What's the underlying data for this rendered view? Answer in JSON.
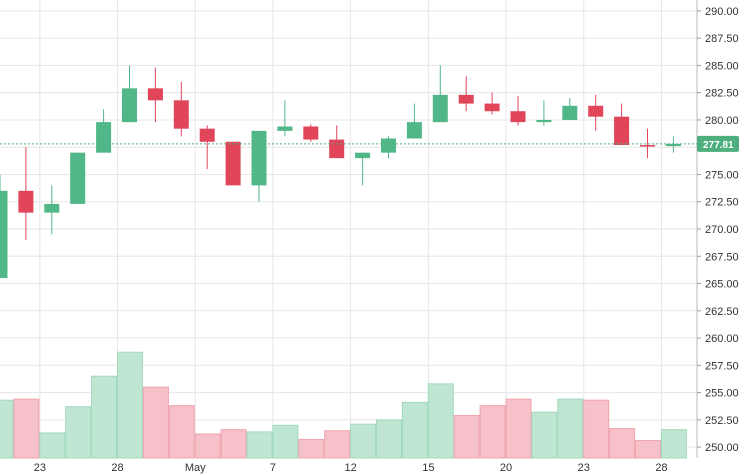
{
  "chart_data": {
    "type": "candlestick",
    "y_axis": {
      "position": "right",
      "range": [
        249.0,
        291.0
      ],
      "ticks": [
        "290.00",
        "287.50",
        "285.00",
        "282.50",
        "280.00",
        "277.50",
        "275.00",
        "272.50",
        "270.00",
        "267.50",
        "265.00",
        "262.50",
        "260.00",
        "257.50",
        "255.00",
        "252.50",
        "250.00"
      ]
    },
    "x_axis": {
      "tick_labels": [
        {
          "label": "23",
          "at_index": 1.5
        },
        {
          "label": "28",
          "at_index": 4.5
        },
        {
          "label": "May",
          "at_index": 7.5
        },
        {
          "label": "7",
          "at_index": 10.5
        },
        {
          "label": "12",
          "at_index": 13.5
        },
        {
          "label": "15",
          "at_index": 16.5
        },
        {
          "label": "20",
          "at_index": 19.5
        },
        {
          "label": "23",
          "at_index": 22.5
        },
        {
          "label": "28",
          "at_index": 25.5
        }
      ]
    },
    "grid": true,
    "current_price": {
      "label": "277.81",
      "value": 277.81,
      "color": "#4caf7d"
    },
    "colors": {
      "up": "#52b788",
      "down": "#e0455a",
      "volume_up": "#bfe6d2",
      "volume_down": "#f6c1c8",
      "grid": "#e6e6e6",
      "axis_text": "#333333"
    },
    "candles": [
      {
        "o": 265.5,
        "h": 275.0,
        "l": 265.5,
        "c": 273.5
      },
      {
        "o": 273.5,
        "h": 277.5,
        "l": 269.0,
        "c": 271.5
      },
      {
        "o": 271.5,
        "h": 274.0,
        "l": 269.5,
        "c": 272.3
      },
      {
        "o": 272.3,
        "h": 277.0,
        "l": 272.3,
        "c": 277.0
      },
      {
        "o": 277.0,
        "h": 281.0,
        "l": 277.0,
        "c": 279.8
      },
      {
        "o": 279.8,
        "h": 285.0,
        "l": 279.8,
        "c": 282.9
      },
      {
        "o": 282.9,
        "h": 284.8,
        "l": 279.8,
        "c": 281.8
      },
      {
        "o": 281.8,
        "h": 283.5,
        "l": 278.5,
        "c": 279.2
      },
      {
        "o": 279.2,
        "h": 279.5,
        "l": 275.5,
        "c": 278.0
      },
      {
        "o": 278.0,
        "h": 278.0,
        "l": 274.0,
        "c": 274.0
      },
      {
        "o": 274.0,
        "h": 279.0,
        "l": 272.5,
        "c": 279.0
      },
      {
        "o": 279.0,
        "h": 281.8,
        "l": 278.5,
        "c": 279.4
      },
      {
        "o": 279.4,
        "h": 279.6,
        "l": 278.0,
        "c": 278.2
      },
      {
        "o": 278.2,
        "h": 279.5,
        "l": 276.5,
        "c": 276.5
      },
      {
        "o": 276.5,
        "h": 277.0,
        "l": 274.0,
        "c": 277.0
      },
      {
        "o": 277.0,
        "h": 278.5,
        "l": 276.5,
        "c": 278.3
      },
      {
        "o": 278.3,
        "h": 281.5,
        "l": 278.3,
        "c": 279.8
      },
      {
        "o": 279.8,
        "h": 285.0,
        "l": 279.8,
        "c": 282.3
      },
      {
        "o": 282.3,
        "h": 284.0,
        "l": 280.8,
        "c": 281.5
      },
      {
        "o": 281.5,
        "h": 282.5,
        "l": 280.5,
        "c": 280.8
      },
      {
        "o": 280.8,
        "h": 282.2,
        "l": 279.5,
        "c": 279.8
      },
      {
        "o": 279.8,
        "h": 281.8,
        "l": 279.5,
        "c": 280.0
      },
      {
        "o": 280.0,
        "h": 282.0,
        "l": 280.0,
        "c": 281.3
      },
      {
        "o": 281.3,
        "h": 282.3,
        "l": 279.0,
        "c": 280.3
      },
      {
        "o": 280.3,
        "h": 281.5,
        "l": 277.7,
        "c": 277.7
      },
      {
        "o": 277.7,
        "h": 279.2,
        "l": 276.5,
        "c": 277.6
      },
      {
        "o": 277.6,
        "h": 278.5,
        "l": 277.0,
        "c": 277.81
      }
    ],
    "volume_scale": "drawn on the price axis (bar top level)",
    "volume_tops": [
      254.3,
      254.4,
      251.3,
      253.7,
      256.5,
      258.7,
      255.5,
      253.8,
      251.2,
      251.6,
      251.4,
      252.0,
      250.7,
      251.5,
      252.1,
      252.5,
      254.1,
      255.8,
      252.9,
      253.8,
      254.4,
      253.2,
      254.4,
      254.3,
      251.7,
      250.6,
      251.6
    ]
  }
}
